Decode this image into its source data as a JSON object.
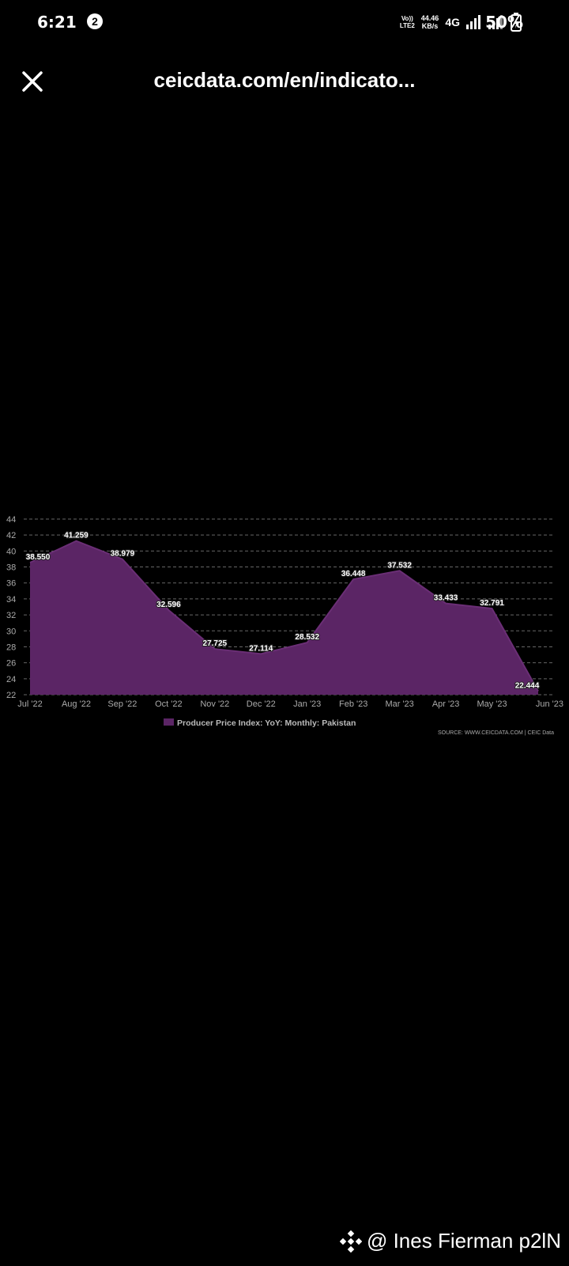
{
  "status_bar": {
    "time": "6:21",
    "notification_count": "2",
    "volte_line1": "Vo))",
    "volte_line2": "LTE2",
    "speed_value": "44.46",
    "speed_unit": "KB/s",
    "network": "4G",
    "battery": "50%"
  },
  "app_bar": {
    "url": "ceicdata.com/en/indicato..."
  },
  "chart_data": {
    "type": "area",
    "categories": [
      "Jul '22",
      "Aug '22",
      "Sep '22",
      "Oct '22",
      "Nov '22",
      "Dec '22",
      "Jan '23",
      "Feb '23",
      "Mar '23",
      "Apr '23",
      "May '23",
      "Jun '23"
    ],
    "values": [
      38.55,
      41.259,
      38.979,
      32.596,
      27.725,
      27.114,
      28.532,
      36.448,
      37.532,
      33.433,
      32.791,
      22.444
    ],
    "data_labels": [
      "38.550",
      "41.259",
      "38.979",
      "32.596",
      "27.725",
      "27.114",
      "28.532",
      "36.448",
      "37.532",
      "33.433",
      "32.791",
      "22.444"
    ],
    "ylim": [
      22,
      44
    ],
    "yticks": [
      "22",
      "24",
      "26",
      "28",
      "30",
      "32",
      "34",
      "36",
      "38",
      "40",
      "42",
      "44"
    ],
    "series_name": "Producer Price Index: YoY: Monthly: Pakistan",
    "source": "SOURCE: WWW.CEICDATA.COM | CEIC Data",
    "grid": true,
    "legend_position": "bottom-center",
    "fill_color": "#5b2565",
    "line_color": "#6a2e75"
  },
  "watermark": {
    "text": "@ Ines Fierman p2lN"
  }
}
